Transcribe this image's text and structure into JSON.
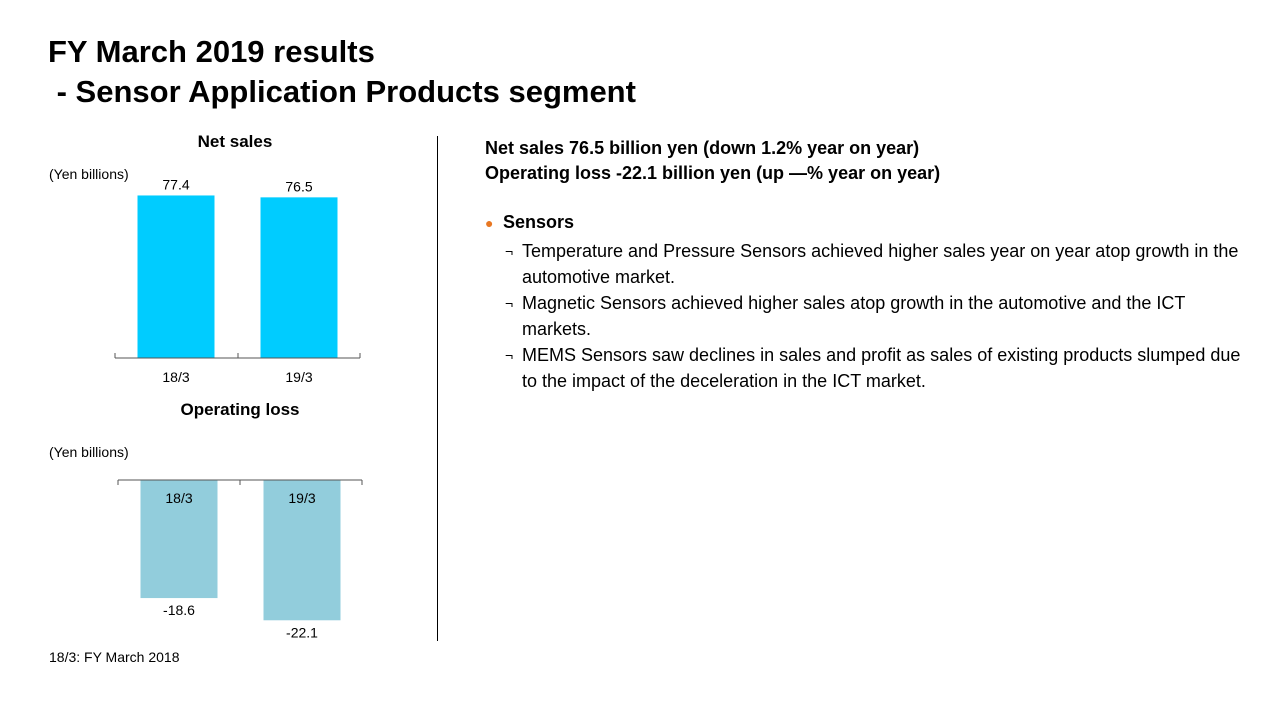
{
  "title": {
    "line1": "FY March 2019 results",
    "line2": " - Sensor Application Products segment"
  },
  "chart_data": [
    {
      "type": "bar",
      "title": "Net sales",
      "unit_label": "(Yen billions)",
      "categories": [
        "18/3",
        "19/3"
      ],
      "values": [
        77.4,
        76.5
      ],
      "color": "#00ccff",
      "ylim": [
        0,
        80
      ]
    },
    {
      "type": "bar",
      "title": "Operating loss",
      "unit_label": "(Yen billions)",
      "categories": [
        "18/3",
        "19/3"
      ],
      "values": [
        -18.6,
        -22.1
      ],
      "color": "#92cddc",
      "ylim": [
        -23,
        0
      ]
    }
  ],
  "footnote": "18/3: FY March 2018",
  "summary": {
    "line1": "Net sales 76.5 billion yen (down 1.2% year on year)",
    "line2": "Operating loss -22.1 billion yen (up —% year on year)"
  },
  "section": {
    "bullet": "●",
    "heading": "Sensors",
    "bullet_color": "#e87722",
    "sub_marker": "¬",
    "items": [
      "Temperature and Pressure Sensors achieved higher sales year on year atop growth in the automotive market.",
      "Magnetic Sensors achieved higher sales atop growth in the automotive and the ICT markets.",
      "MEMS Sensors saw declines in sales and profit as sales of existing products slumped due to the impact of the deceleration in the ICT market."
    ]
  }
}
